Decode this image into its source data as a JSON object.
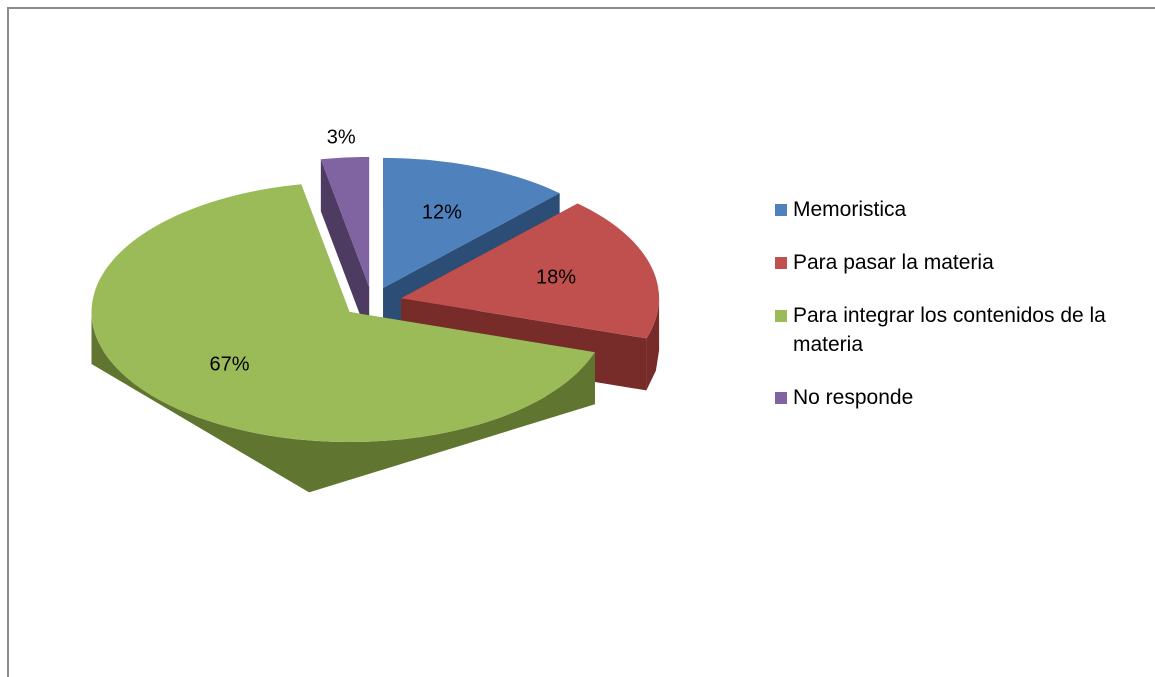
{
  "chart_data": {
    "type": "pie3d",
    "categories": [
      "Memoristica",
      "Para pasar la materia",
      "Para integrar los contenidos de la materia",
      "No responde"
    ],
    "values": [
      12,
      18,
      67,
      3
    ],
    "value_labels": [
      "12%",
      "18%",
      "67%",
      "3%"
    ],
    "colors": [
      "#4f81bd",
      "#c0504d",
      "#9bbb59",
      "#8064a2"
    ],
    "side_colors": [
      "#2c4d75",
      "#772c2a",
      "#5f7530",
      "#4d3b62"
    ],
    "legend": "right"
  }
}
